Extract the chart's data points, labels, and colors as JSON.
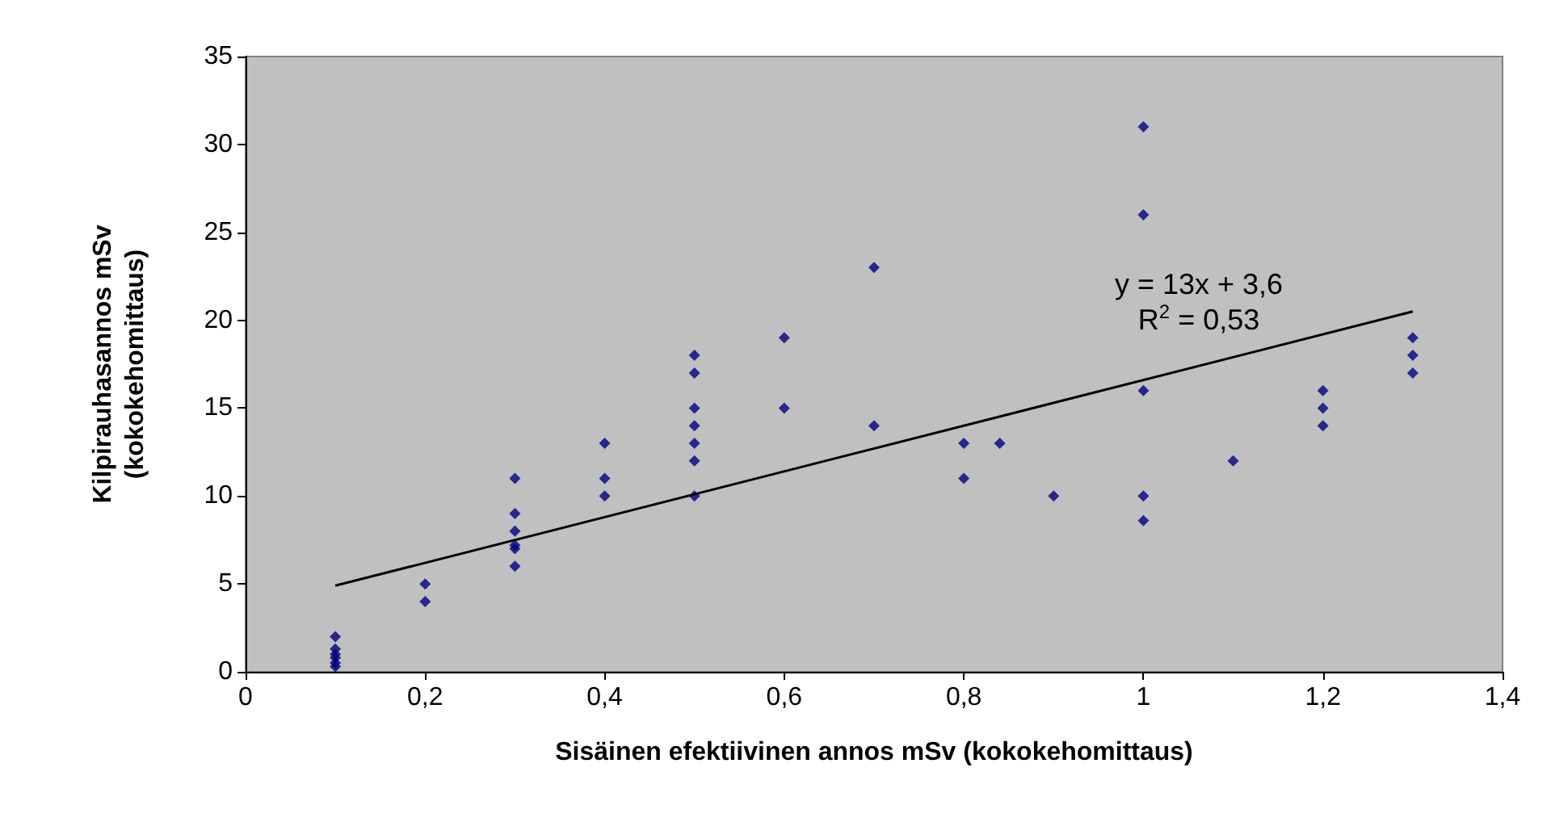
{
  "chart_data": {
    "type": "scatter",
    "xlabel": "Sisäinen efektiivinen annos mSv (kokokehomittaus)",
    "ylabel": "Kilpirauhasannos mSv\n(kokokehomittaus)",
    "xlim": [
      0,
      1.4
    ],
    "xticks": [
      0,
      {
        "value": 0.2,
        "label": "0,2"
      },
      {
        "value": 0.4,
        "label": "0,4"
      },
      {
        "value": 0.6,
        "label": "0,6"
      },
      {
        "value": 0.8,
        "label": "0,8"
      },
      1,
      {
        "value": 1.2,
        "label": "1,2"
      },
      {
        "value": 1.4,
        "label": "1,4"
      }
    ],
    "ylim": [
      0,
      35
    ],
    "yticks": [
      0,
      5,
      10,
      15,
      20,
      25,
      30,
      35
    ],
    "grid": false,
    "marker": "diamond",
    "series": [
      {
        "color": "#000080",
        "x": [
          0.1,
          0.1,
          0.1,
          0.1,
          0.1,
          0.1,
          0.2,
          0.2,
          0.3,
          0.3,
          0.3,
          0.3,
          0.3,
          0.3,
          0.4,
          0.4,
          0.4,
          0.5,
          0.5,
          0.5,
          0.5,
          0.5,
          0.5,
          0.5,
          0.6,
          0.6,
          0.7,
          0.7,
          0.8,
          0.8,
          0.84,
          0.9,
          1,
          1,
          1,
          1,
          1,
          1.1,
          1.2,
          1.2,
          1.2,
          1.3,
          1.3,
          1.3
        ],
        "values": [
          0.3,
          0.5,
          0.8,
          1,
          1.3,
          2,
          4,
          5,
          6,
          7,
          7.2,
          8,
          9,
          11,
          10,
          11,
          13,
          10,
          12,
          13,
          14,
          15,
          17,
          18,
          15,
          19,
          14,
          23,
          11,
          13,
          13,
          10,
          8.6,
          10,
          16,
          26,
          31,
          12,
          14,
          15,
          16,
          17,
          18,
          19
        ]
      },
      {
        "type": "line",
        "color": "#000000",
        "line_style": "solid",
        "marker": "none",
        "x": [
          0.1,
          1.3
        ],
        "values": [
          4.9,
          20.5
        ]
      }
    ],
    "annotations": [
      "y = 13x + 3,6",
      "R$^{2}$ = 0,53"
    ]
  }
}
